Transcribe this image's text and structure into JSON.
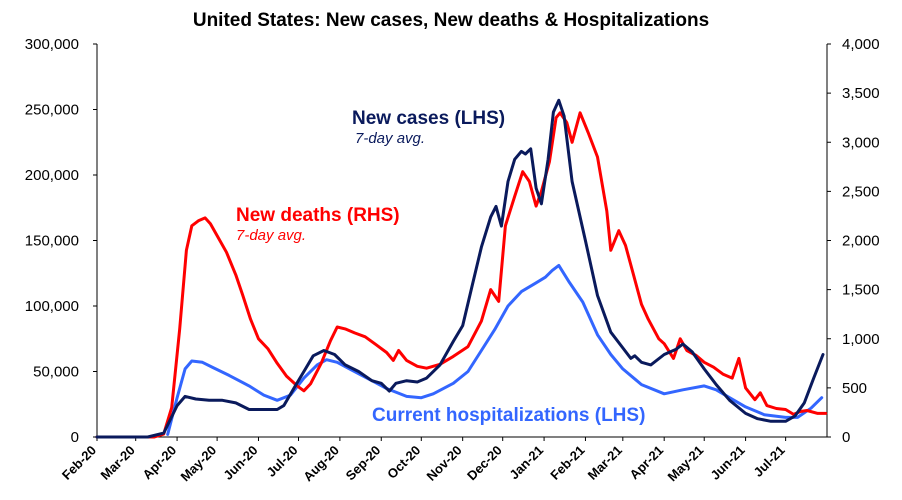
{
  "chart_data": {
    "type": "line",
    "title": "United States: New cases, New deaths & Hospitalizations",
    "colors": {
      "cases": "#0a1a5c",
      "deaths": "#ff0000",
      "hosp": "#3366ff"
    },
    "y_left": {
      "lim": [
        0,
        300000
      ],
      "ticks": [
        0,
        50000,
        100000,
        150000,
        200000,
        250000,
        300000
      ],
      "tick_labels": [
        "0",
        "50,000",
        "100,000",
        "150,000",
        "200,000",
        "250,000",
        "300,000"
      ]
    },
    "y_right": {
      "lim": [
        0,
        4000
      ],
      "ticks": [
        0,
        500,
        1000,
        1500,
        2000,
        2500,
        3000,
        3500,
        4000
      ],
      "tick_labels": [
        "0",
        "500",
        "1,000",
        "1,500",
        "2,000",
        "2,500",
        "3,000",
        "3,500",
        "4,000"
      ]
    },
    "x_ticks": [
      "2020-02-01",
      "2020-03-01",
      "2020-04-01",
      "2020-05-01",
      "2020-06-01",
      "2020-07-01",
      "2020-08-01",
      "2020-09-01",
      "2020-10-01",
      "2020-11-01",
      "2020-12-01",
      "2021-01-01",
      "2021-02-01",
      "2021-03-01",
      "2021-04-01",
      "2021-05-01",
      "2021-06-01",
      "2021-07-01"
    ],
    "x_tick_labels": [
      "Feb-20",
      "Mar-20",
      "Apr-20",
      "May-20",
      "Jun-20",
      "Jul-20",
      "Aug-20",
      "Sep-20",
      "Oct-20",
      "Nov-20",
      "Dec-20",
      "Jan-21",
      "Feb-21",
      "Mar-21",
      "Apr-21",
      "May-21",
      "Jun-21",
      "Jul-21"
    ],
    "x_range": [
      "2020-02-01",
      "2021-08-01"
    ],
    "labels": {
      "cases": {
        "main": "New cases (LHS)",
        "sub": "7-day avg."
      },
      "deaths": {
        "main": "New deaths (RHS)",
        "sub": "7-day avg."
      },
      "hosp": {
        "main": "Current hospitalizations (LHS)"
      }
    },
    "series": [
      {
        "name": "New cases (LHS)",
        "axis": "left",
        "key": "cases",
        "points": [
          [
            "2020-02-01",
            0
          ],
          [
            "2020-03-10",
            0
          ],
          [
            "2020-03-22",
            3000
          ],
          [
            "2020-04-01",
            24000
          ],
          [
            "2020-04-07",
            31000
          ],
          [
            "2020-04-15",
            29000
          ],
          [
            "2020-04-25",
            28000
          ],
          [
            "2020-05-05",
            28000
          ],
          [
            "2020-05-15",
            26000
          ],
          [
            "2020-05-25",
            21000
          ],
          [
            "2020-06-05",
            21000
          ],
          [
            "2020-06-15",
            21000
          ],
          [
            "2020-06-20",
            24000
          ],
          [
            "2020-06-28",
            38000
          ],
          [
            "2020-07-05",
            50000
          ],
          [
            "2020-07-12",
            62000
          ],
          [
            "2020-07-20",
            66000
          ],
          [
            "2020-07-28",
            63000
          ],
          [
            "2020-08-05",
            55000
          ],
          [
            "2020-08-15",
            50000
          ],
          [
            "2020-08-25",
            43000
          ],
          [
            "2020-09-01",
            41000
          ],
          [
            "2020-09-07",
            35000
          ],
          [
            "2020-09-12",
            41000
          ],
          [
            "2020-09-20",
            43000
          ],
          [
            "2020-09-28",
            42000
          ],
          [
            "2020-10-05",
            45000
          ],
          [
            "2020-10-15",
            55000
          ],
          [
            "2020-10-25",
            73000
          ],
          [
            "2020-11-01",
            85000
          ],
          [
            "2020-11-08",
            115000
          ],
          [
            "2020-11-15",
            145000
          ],
          [
            "2020-11-22",
            168000
          ],
          [
            "2020-11-26",
            176000
          ],
          [
            "2020-11-30",
            161000
          ],
          [
            "2020-12-05",
            195000
          ],
          [
            "2020-12-10",
            212000
          ],
          [
            "2020-12-15",
            218000
          ],
          [
            "2020-12-18",
            216000
          ],
          [
            "2020-12-22",
            220000
          ],
          [
            "2020-12-26",
            190000
          ],
          [
            "2020-12-30",
            178000
          ],
          [
            "2021-01-04",
            212000
          ],
          [
            "2021-01-08",
            248000
          ],
          [
            "2021-01-12",
            257000
          ],
          [
            "2021-01-16",
            245000
          ],
          [
            "2021-01-22",
            195000
          ],
          [
            "2021-02-01",
            150000
          ],
          [
            "2021-02-10",
            108000
          ],
          [
            "2021-02-20",
            80000
          ],
          [
            "2021-03-01",
            68000
          ],
          [
            "2021-03-07",
            60000
          ],
          [
            "2021-03-10",
            62000
          ],
          [
            "2021-03-15",
            57000
          ],
          [
            "2021-03-22",
            55000
          ],
          [
            "2021-04-01",
            63000
          ],
          [
            "2021-04-10",
            67000
          ],
          [
            "2021-04-15",
            71000
          ],
          [
            "2021-04-22",
            65000
          ],
          [
            "2021-05-01",
            52000
          ],
          [
            "2021-05-10",
            40000
          ],
          [
            "2021-05-20",
            28000
          ],
          [
            "2021-06-01",
            18000
          ],
          [
            "2021-06-10",
            14000
          ],
          [
            "2021-06-20",
            12000
          ],
          [
            "2021-07-01",
            12000
          ],
          [
            "2021-07-08",
            16000
          ],
          [
            "2021-07-15",
            26000
          ],
          [
            "2021-07-22",
            45000
          ],
          [
            "2021-07-29",
            63000
          ]
        ]
      },
      {
        "name": "New deaths (RHS)",
        "axis": "right",
        "key": "deaths",
        "points": [
          [
            "2020-02-01",
            0
          ],
          [
            "2020-03-15",
            0
          ],
          [
            "2020-03-22",
            30
          ],
          [
            "2020-03-28",
            300
          ],
          [
            "2020-04-03",
            1100
          ],
          [
            "2020-04-08",
            1900
          ],
          [
            "2020-04-12",
            2150
          ],
          [
            "2020-04-17",
            2200
          ],
          [
            "2020-04-22",
            2230
          ],
          [
            "2020-04-26",
            2170
          ],
          [
            "2020-05-01",
            2050
          ],
          [
            "2020-05-08",
            1880
          ],
          [
            "2020-05-15",
            1650
          ],
          [
            "2020-05-20",
            1450
          ],
          [
            "2020-05-26",
            1200
          ],
          [
            "2020-06-01",
            1000
          ],
          [
            "2020-06-08",
            900
          ],
          [
            "2020-06-15",
            750
          ],
          [
            "2020-06-22",
            620
          ],
          [
            "2020-06-30",
            520
          ],
          [
            "2020-07-05",
            470
          ],
          [
            "2020-07-10",
            540
          ],
          [
            "2020-07-18",
            750
          ],
          [
            "2020-07-25",
            980
          ],
          [
            "2020-07-30",
            1120
          ],
          [
            "2020-08-05",
            1100
          ],
          [
            "2020-08-12",
            1060
          ],
          [
            "2020-08-20",
            1020
          ],
          [
            "2020-08-28",
            940
          ],
          [
            "2020-09-05",
            860
          ],
          [
            "2020-09-10",
            780
          ],
          [
            "2020-09-14",
            880
          ],
          [
            "2020-09-20",
            780
          ],
          [
            "2020-09-28",
            720
          ],
          [
            "2020-10-05",
            700
          ],
          [
            "2020-10-15",
            740
          ],
          [
            "2020-10-25",
            820
          ],
          [
            "2020-11-05",
            920
          ],
          [
            "2020-11-15",
            1180
          ],
          [
            "2020-11-22",
            1500
          ],
          [
            "2020-11-28",
            1380
          ],
          [
            "2020-12-03",
            2150
          ],
          [
            "2020-12-10",
            2450
          ],
          [
            "2020-12-16",
            2700
          ],
          [
            "2020-12-21",
            2600
          ],
          [
            "2020-12-26",
            2350
          ],
          [
            "2020-12-30",
            2500
          ],
          [
            "2021-01-05",
            2800
          ],
          [
            "2021-01-10",
            3250
          ],
          [
            "2021-01-13",
            3300
          ],
          [
            "2021-01-18",
            3200
          ],
          [
            "2021-01-22",
            3000
          ],
          [
            "2021-01-28",
            3300
          ],
          [
            "2021-02-03",
            3100
          ],
          [
            "2021-02-10",
            2850
          ],
          [
            "2021-02-17",
            2300
          ],
          [
            "2021-02-20",
            1900
          ],
          [
            "2021-02-26",
            2100
          ],
          [
            "2021-03-03",
            1950
          ],
          [
            "2021-03-08",
            1700
          ],
          [
            "2021-03-15",
            1350
          ],
          [
            "2021-03-20",
            1200
          ],
          [
            "2021-03-28",
            1000
          ],
          [
            "2021-04-01",
            950
          ],
          [
            "2021-04-08",
            800
          ],
          [
            "2021-04-13",
            1000
          ],
          [
            "2021-04-18",
            880
          ],
          [
            "2021-04-25",
            830
          ],
          [
            "2021-05-01",
            760
          ],
          [
            "2021-05-08",
            710
          ],
          [
            "2021-05-15",
            640
          ],
          [
            "2021-05-22",
            600
          ],
          [
            "2021-05-27",
            800
          ],
          [
            "2021-06-01",
            500
          ],
          [
            "2021-06-08",
            380
          ],
          [
            "2021-06-12",
            450
          ],
          [
            "2021-06-17",
            320
          ],
          [
            "2021-06-24",
            290
          ],
          [
            "2021-07-01",
            280
          ],
          [
            "2021-07-07",
            230
          ],
          [
            "2021-07-12",
            260
          ],
          [
            "2021-07-17",
            270
          ],
          [
            "2021-07-25",
            240
          ],
          [
            "2021-07-31",
            240
          ]
        ]
      },
      {
        "name": "Current hospitalizations (LHS)",
        "axis": "left",
        "key": "hosp",
        "points": [
          [
            "2020-03-25",
            2000
          ],
          [
            "2020-04-01",
            30000
          ],
          [
            "2020-04-07",
            52000
          ],
          [
            "2020-04-12",
            58000
          ],
          [
            "2020-04-20",
            57000
          ],
          [
            "2020-04-28",
            53000
          ],
          [
            "2020-05-10",
            47000
          ],
          [
            "2020-05-25",
            39000
          ],
          [
            "2020-06-05",
            32000
          ],
          [
            "2020-06-15",
            28000
          ],
          [
            "2020-06-25",
            32000
          ],
          [
            "2020-07-05",
            45000
          ],
          [
            "2020-07-15",
            55000
          ],
          [
            "2020-07-22",
            59000
          ],
          [
            "2020-07-30",
            57000
          ],
          [
            "2020-08-10",
            51000
          ],
          [
            "2020-08-25",
            43000
          ],
          [
            "2020-09-05",
            37000
          ],
          [
            "2020-09-20",
            31000
          ],
          [
            "2020-10-01",
            30000
          ],
          [
            "2020-10-10",
            33000
          ],
          [
            "2020-10-25",
            41000
          ],
          [
            "2020-11-05",
            50000
          ],
          [
            "2020-11-15",
            66000
          ],
          [
            "2020-11-25",
            82000
          ],
          [
            "2020-12-05",
            100000
          ],
          [
            "2020-12-15",
            111000
          ],
          [
            "2020-12-25",
            117000
          ],
          [
            "2021-01-02",
            122000
          ],
          [
            "2021-01-07",
            127000
          ],
          [
            "2021-01-12",
            131000
          ],
          [
            "2021-01-20",
            118000
          ],
          [
            "2021-01-30",
            103000
          ],
          [
            "2021-02-10",
            78000
          ],
          [
            "2021-02-20",
            63000
          ],
          [
            "2021-03-01",
            52000
          ],
          [
            "2021-03-15",
            40000
          ],
          [
            "2021-04-01",
            33000
          ],
          [
            "2021-04-15",
            36000
          ],
          [
            "2021-05-01",
            39000
          ],
          [
            "2021-05-10",
            36000
          ],
          [
            "2021-05-20",
            30000
          ],
          [
            "2021-06-01",
            23000
          ],
          [
            "2021-06-15",
            17000
          ],
          [
            "2021-07-01",
            15000
          ],
          [
            "2021-07-10",
            15000
          ],
          [
            "2021-07-20",
            22000
          ],
          [
            "2021-07-28",
            30000
          ]
        ]
      }
    ]
  }
}
